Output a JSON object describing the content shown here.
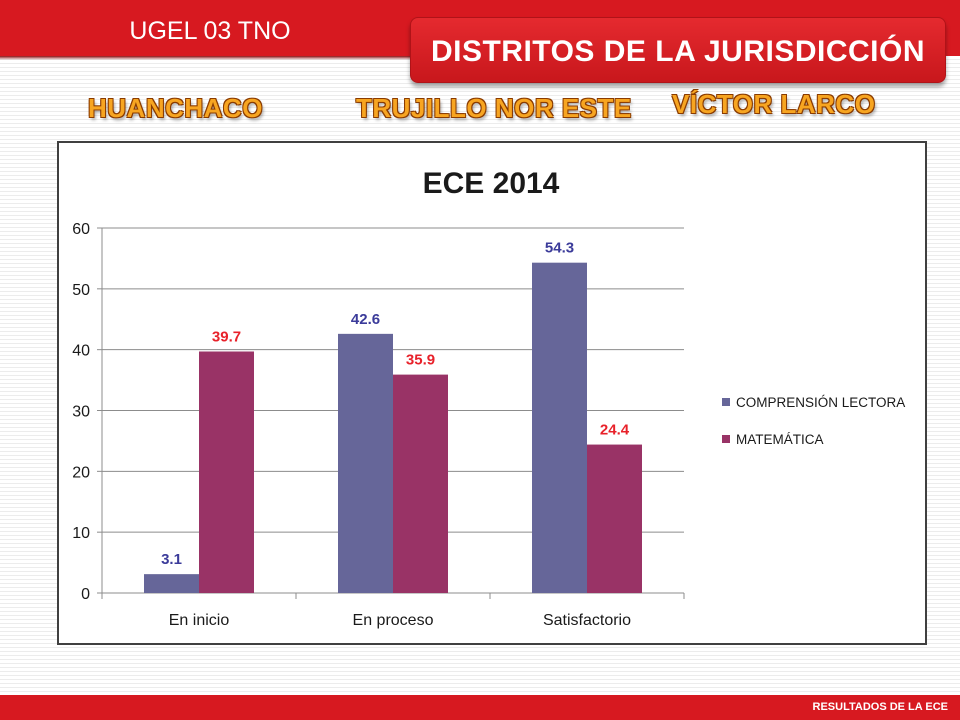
{
  "header": {
    "organization": "UGEL 03 TNO",
    "title": "DISTRITOS DE LA JURISDICCIÓN"
  },
  "districts": [
    "HUANCHACO",
    "TRUJILLO NOR ESTE",
    "VÍCTOR LARCO"
  ],
  "footer": {
    "text": "RESULTADOS DE LA ECE"
  },
  "colors": {
    "brand_red": "#d71920",
    "district_orange": "#f7a521"
  },
  "chart_data": {
    "type": "bar",
    "title": "ECE 2014",
    "categories": [
      "En inicio",
      "En proceso",
      "Satisfactorio"
    ],
    "series": [
      {
        "name": "COMPRENSIÓN LECTORA",
        "values": [
          3.1,
          42.6,
          54.3
        ],
        "color": "#666699",
        "label_color": "#3b3b9a"
      },
      {
        "name": "MATEMÁTICA",
        "values": [
          39.7,
          35.9,
          24.4
        ],
        "color": "#993366",
        "label_color": "#e8212a"
      }
    ],
    "yticks": [
      "0",
      "10",
      "20",
      "30",
      "40",
      "50",
      "60"
    ],
    "ylim": [
      0,
      60
    ],
    "grid": true,
    "legend_position": "right"
  }
}
